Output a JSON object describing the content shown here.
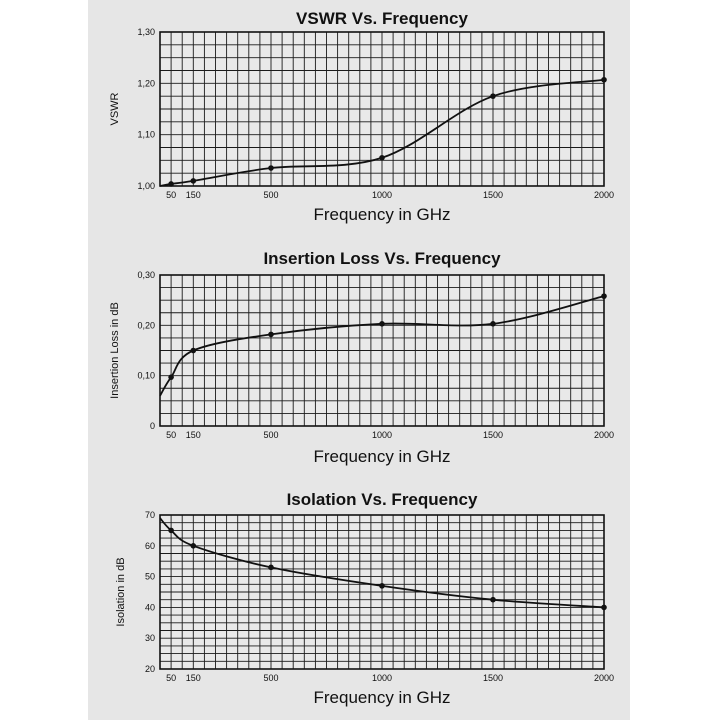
{
  "colors": {
    "page": "#e6e6e6",
    "plot_bg": "#e9e9e9",
    "grid": "#1a1a1a",
    "line": "#111111"
  },
  "chart_data": [
    {
      "type": "line",
      "title": "VSWR Vs. Frequency",
      "xlabel": "Frequency in GHz",
      "ylabel": "VSWR",
      "xlim": [
        0,
        2000
      ],
      "ylim": [
        1.0,
        1.3
      ],
      "xticks": [
        50,
        150,
        500,
        1000,
        1500,
        2000
      ],
      "yticks": [
        1.0,
        1.1,
        1.2,
        1.3
      ],
      "yticklabels": [
        "1,00",
        "1,10",
        "1,20",
        "1,30"
      ],
      "grid": true,
      "series": [
        {
          "x": [
            0,
            50,
            150,
            500,
            1000,
            1500,
            2000
          ],
          "y": [
            1.0,
            1.004,
            1.01,
            1.035,
            1.055,
            1.175,
            1.207
          ],
          "markers": [
            50,
            150,
            500,
            1000,
            1500,
            2000
          ]
        }
      ]
    },
    {
      "type": "line",
      "title": "Insertion Loss Vs. Frequency",
      "xlabel": "Frequency in GHz",
      "ylabel": "Insertion Loss in dB",
      "xlim": [
        0,
        2000
      ],
      "ylim": [
        0,
        0.3
      ],
      "xticks": [
        50,
        150,
        500,
        1000,
        1500,
        2000
      ],
      "yticks": [
        0,
        0.1,
        0.2,
        0.3
      ],
      "yticklabels": [
        "0",
        "0,10",
        "0,20",
        "0,30"
      ],
      "grid": true,
      "series": [
        {
          "x": [
            0,
            50,
            150,
            500,
            1000,
            1500,
            2000
          ],
          "y": [
            0.06,
            0.097,
            0.15,
            0.182,
            0.203,
            0.203,
            0.258
          ],
          "markers": [
            50,
            150,
            500,
            1000,
            1500,
            2000
          ]
        }
      ]
    },
    {
      "type": "line",
      "title": "Isolation Vs. Frequency",
      "xlabel": "Frequency in GHz",
      "ylabel": "Isolation in dB",
      "xlim": [
        0,
        2000
      ],
      "ylim": [
        20,
        70
      ],
      "xticks": [
        50,
        150,
        500,
        1000,
        1500,
        2000
      ],
      "yticks": [
        20,
        30,
        40,
        50,
        60,
        70
      ],
      "yticklabels": [
        "20",
        "30",
        "40",
        "50",
        "60",
        "70"
      ],
      "grid": true,
      "series": [
        {
          "x": [
            0,
            50,
            150,
            500,
            1000,
            1500,
            2000
          ],
          "y": [
            69,
            65,
            60,
            53,
            47,
            42.5,
            40
          ],
          "markers": [
            50,
            150,
            500,
            1000,
            1500,
            2000
          ]
        }
      ]
    }
  ]
}
